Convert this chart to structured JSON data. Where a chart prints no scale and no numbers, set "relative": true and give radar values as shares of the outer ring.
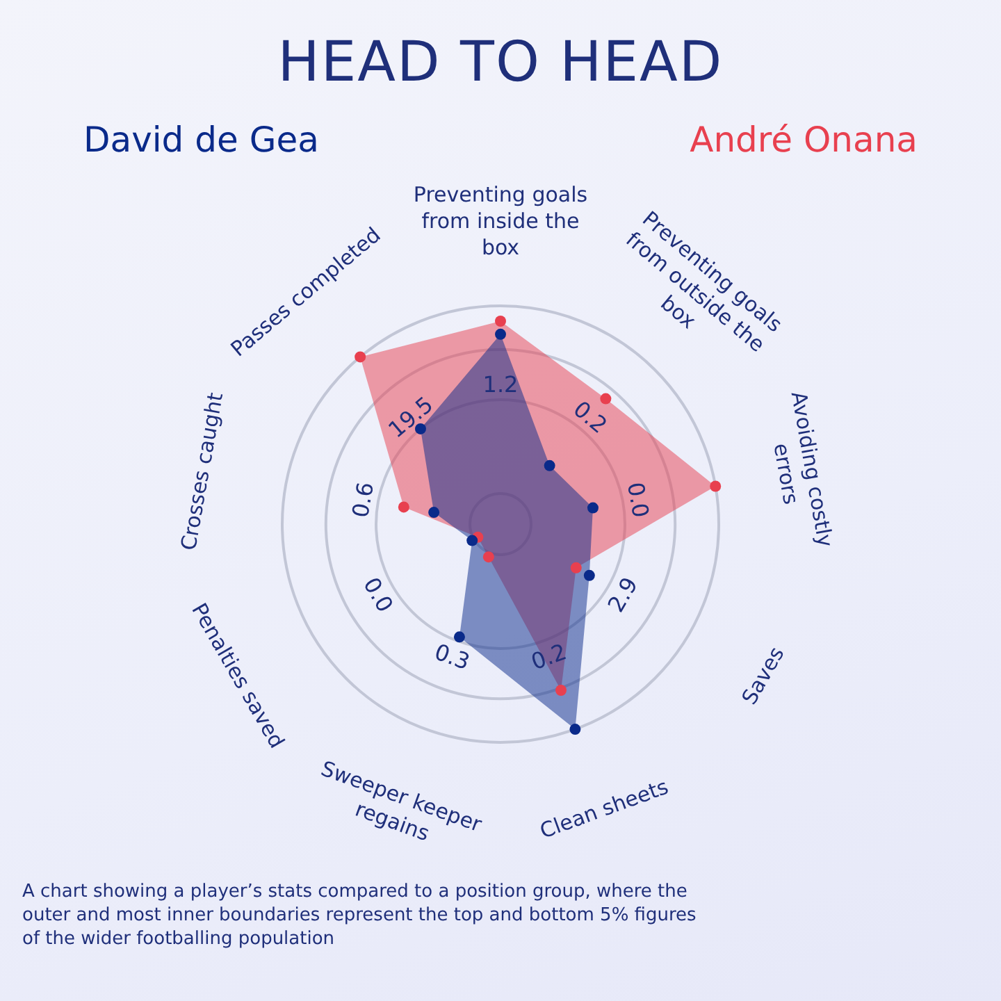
{
  "chart_data": {
    "type": "radar",
    "title": "HEAD TO HEAD",
    "relative": true,
    "grid": true,
    "legend": "top",
    "marker": "circle",
    "categories": [
      "Preventing goals from inside the box",
      "Preventing goals from outside the box",
      "Avoiding costly errors",
      "Saves",
      "Clean sheets",
      "Sweeper keeper regains",
      "Penalties saved",
      "Crosses caught",
      "Passes completed"
    ],
    "series": [
      {
        "name": "David de Gea",
        "color": "#0a2a8a",
        "values": [
          0.87,
          0.35,
          0.43,
          0.47,
          1.0,
          0.55,
          0.15,
          0.31,
          0.57
        ]
      },
      {
        "name": "André Onana",
        "color": "#e8404f",
        "values": [
          0.93,
          0.75,
          1.0,
          0.4,
          0.81,
          0.16,
          0.12,
          0.45,
          1.0
        ]
      }
    ],
    "annotations": [
      "1.2",
      "0.2",
      "0.0",
      "2.9",
      "0.2",
      "0.3",
      "0.0",
      "0.6",
      "19.5",
      "A chart showing a player’s stats compared to a position group,  where the outer and most inner boundaries represent the top  and bottom 5% figures of the wider footballing population"
    ]
  }
}
